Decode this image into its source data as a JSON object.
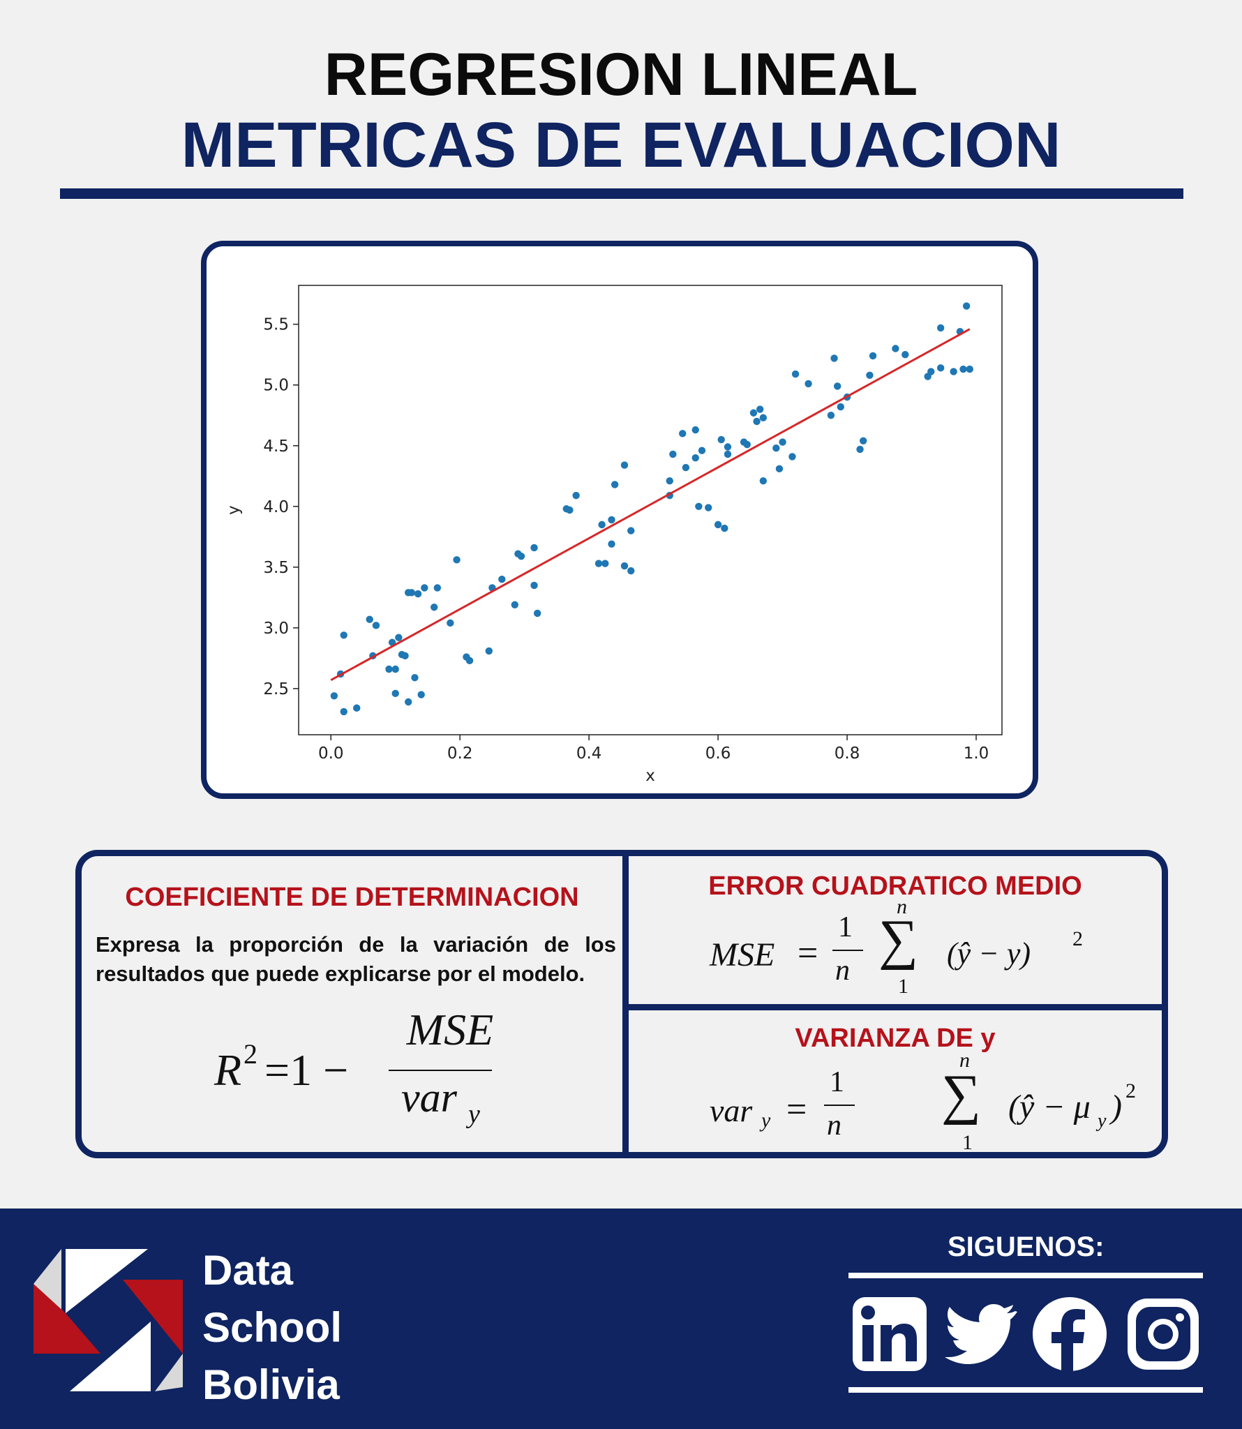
{
  "header": {
    "title": "REGRESION LINEAL",
    "subtitle": "METRICAS DE EVALUACION"
  },
  "colors": {
    "navy": "#0f2460",
    "red": "#b5121b",
    "points": "#1f77b4",
    "regression_line": "#d62728",
    "background": "#f1f1f1"
  },
  "chart_data": {
    "type": "scatter",
    "xlabel": "x",
    "ylabel": "y",
    "xlim": [
      -0.05,
      1.04
    ],
    "ylim": [
      2.12,
      5.82
    ],
    "x_ticks": [
      0.0,
      0.2,
      0.4,
      0.6,
      0.8,
      1.0
    ],
    "x_tick_labels": [
      "0.0",
      "0.2",
      "0.4",
      "0.6",
      "0.8",
      "1.0"
    ],
    "y_ticks": [
      2.5,
      3.0,
      3.5,
      4.0,
      4.5,
      5.0,
      5.5
    ],
    "y_tick_labels": [
      "2.5",
      "3.0",
      "3.5",
      "4.0",
      "4.5",
      "5.0",
      "5.5"
    ],
    "grid": false,
    "series": [
      {
        "kind": "points",
        "x": [
          0.005,
          0.015,
          0.02,
          0.02,
          0.04,
          0.06,
          0.065,
          0.07,
          0.09,
          0.095,
          0.1,
          0.1,
          0.105,
          0.11,
          0.115,
          0.12,
          0.12,
          0.125,
          0.13,
          0.135,
          0.14,
          0.145,
          0.16,
          0.165,
          0.185,
          0.195,
          0.21,
          0.215,
          0.245,
          0.25,
          0.265,
          0.285,
          0.29,
          0.295,
          0.315,
          0.315,
          0.32,
          0.365,
          0.37,
          0.38,
          0.415,
          0.42,
          0.425,
          0.435,
          0.435,
          0.44,
          0.455,
          0.455,
          0.465,
          0.465,
          0.525,
          0.525,
          0.53,
          0.545,
          0.55,
          0.565,
          0.565,
          0.57,
          0.575,
          0.585,
          0.6,
          0.605,
          0.61,
          0.615,
          0.615,
          0.64,
          0.645,
          0.655,
          0.66,
          0.665,
          0.67,
          0.67,
          0.69,
          0.695,
          0.7,
          0.715,
          0.72,
          0.74,
          0.775,
          0.78,
          0.785,
          0.79,
          0.8,
          0.82,
          0.825,
          0.835,
          0.84,
          0.875,
          0.89,
          0.925,
          0.93,
          0.945,
          0.945,
          0.965,
          0.975,
          0.98,
          0.985,
          0.99
        ],
        "y": [
          2.44,
          2.62,
          2.31,
          2.94,
          2.34,
          3.07,
          2.77,
          3.02,
          2.66,
          2.88,
          2.46,
          2.66,
          2.92,
          2.78,
          2.77,
          3.29,
          2.39,
          3.29,
          2.59,
          3.28,
          2.45,
          3.33,
          3.17,
          3.33,
          3.04,
          3.56,
          2.76,
          2.73,
          2.81,
          3.33,
          3.4,
          3.19,
          3.61,
          3.59,
          3.66,
          3.35,
          3.12,
          3.98,
          3.97,
          4.09,
          3.53,
          3.85,
          3.53,
          3.69,
          3.89,
          4.18,
          3.51,
          4.34,
          3.47,
          3.8,
          4.09,
          4.21,
          4.43,
          4.6,
          4.32,
          4.4,
          4.63,
          4.0,
          4.46,
          3.99,
          3.85,
          4.55,
          3.82,
          4.43,
          4.49,
          4.53,
          4.51,
          4.77,
          4.7,
          4.8,
          4.21,
          4.73,
          4.48,
          4.31,
          4.53,
          4.41,
          5.09,
          5.01,
          4.75,
          5.22,
          4.99,
          4.82,
          4.9,
          4.47,
          4.54,
          5.08,
          5.24,
          5.3,
          5.25,
          5.07,
          5.11,
          5.47,
          5.14,
          5.11,
          5.44,
          5.13,
          5.65,
          5.13
        ]
      },
      {
        "kind": "line",
        "x": [
          0.0,
          0.99
        ],
        "y": [
          2.57,
          5.46
        ]
      }
    ]
  },
  "metrics": {
    "r2": {
      "title": "COEFICIENTE DE DETERMINACION",
      "description": "Expresa la proporción de la variación de los resultados que puede explicarse por el modelo.",
      "formula": {
        "lhs": "R",
        "sup": "2",
        "eq": "=1 −",
        "numerator": "MSE",
        "denominator": "var",
        "denominator_sub": "y"
      }
    },
    "mse": {
      "title": "ERROR CUADRATICO MEDIO",
      "formula": {
        "lhs": "MSE",
        "eq": "=",
        "frac_num": "1",
        "frac_den": "n",
        "sum_top": "n",
        "sum": "∑",
        "sum_bottom": "1",
        "term": "(ŷ − y)",
        "power": "2"
      }
    },
    "var": {
      "title": "VARIANZA DE y",
      "formula": {
        "lhs": "var",
        "lhs_sub": "y",
        "eq": "=",
        "frac_num": "1",
        "frac_den": "n",
        "sum_top": "n",
        "sum": "∑",
        "sum_bottom": "1",
        "term_open": "(ŷ − μ",
        "term_sub": "y",
        "term_close": ")",
        "power": "2"
      }
    }
  },
  "footer": {
    "brand": [
      "Data",
      "School",
      "Bolivia"
    ],
    "follow_label": "SIGUENOS:",
    "social": [
      "linkedin-icon",
      "twitter-icon",
      "facebook-icon",
      "instagram-icon"
    ]
  }
}
